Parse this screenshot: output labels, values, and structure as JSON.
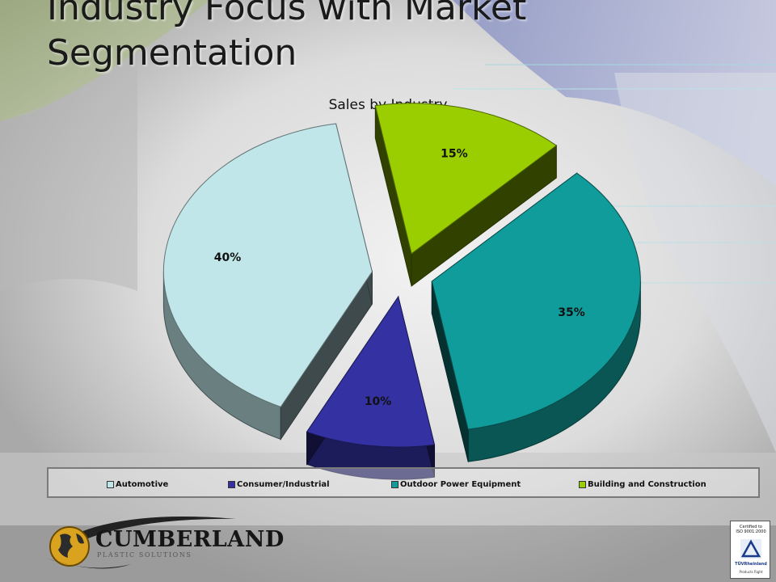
{
  "slide": {
    "title_line1": "Industry Focus with Market",
    "title_line2": "Segmentation"
  },
  "chart_data": {
    "type": "pie",
    "title": "Sales by Industry",
    "style": "3d-exploded",
    "categories": [
      "Automotive",
      "Consumer/Industrial",
      "Outdoor Power Equipment",
      "Building and Construction"
    ],
    "values": [
      40,
      10,
      35,
      15
    ],
    "data_labels": [
      "40%",
      "10%",
      "35%",
      "15%"
    ],
    "colors": [
      "#c1e6e9",
      "#3432a3",
      "#109c9a",
      "#9ace00"
    ],
    "legend": "bottom"
  },
  "logo": {
    "name": "CUMBERLAND",
    "tagline": "PLASTIC SOLUTIONS"
  },
  "certification": {
    "line1": "Certified to",
    "line2": "ISO 9001:2000",
    "issuer": "TÜVRheinland",
    "note": "Products Right"
  }
}
